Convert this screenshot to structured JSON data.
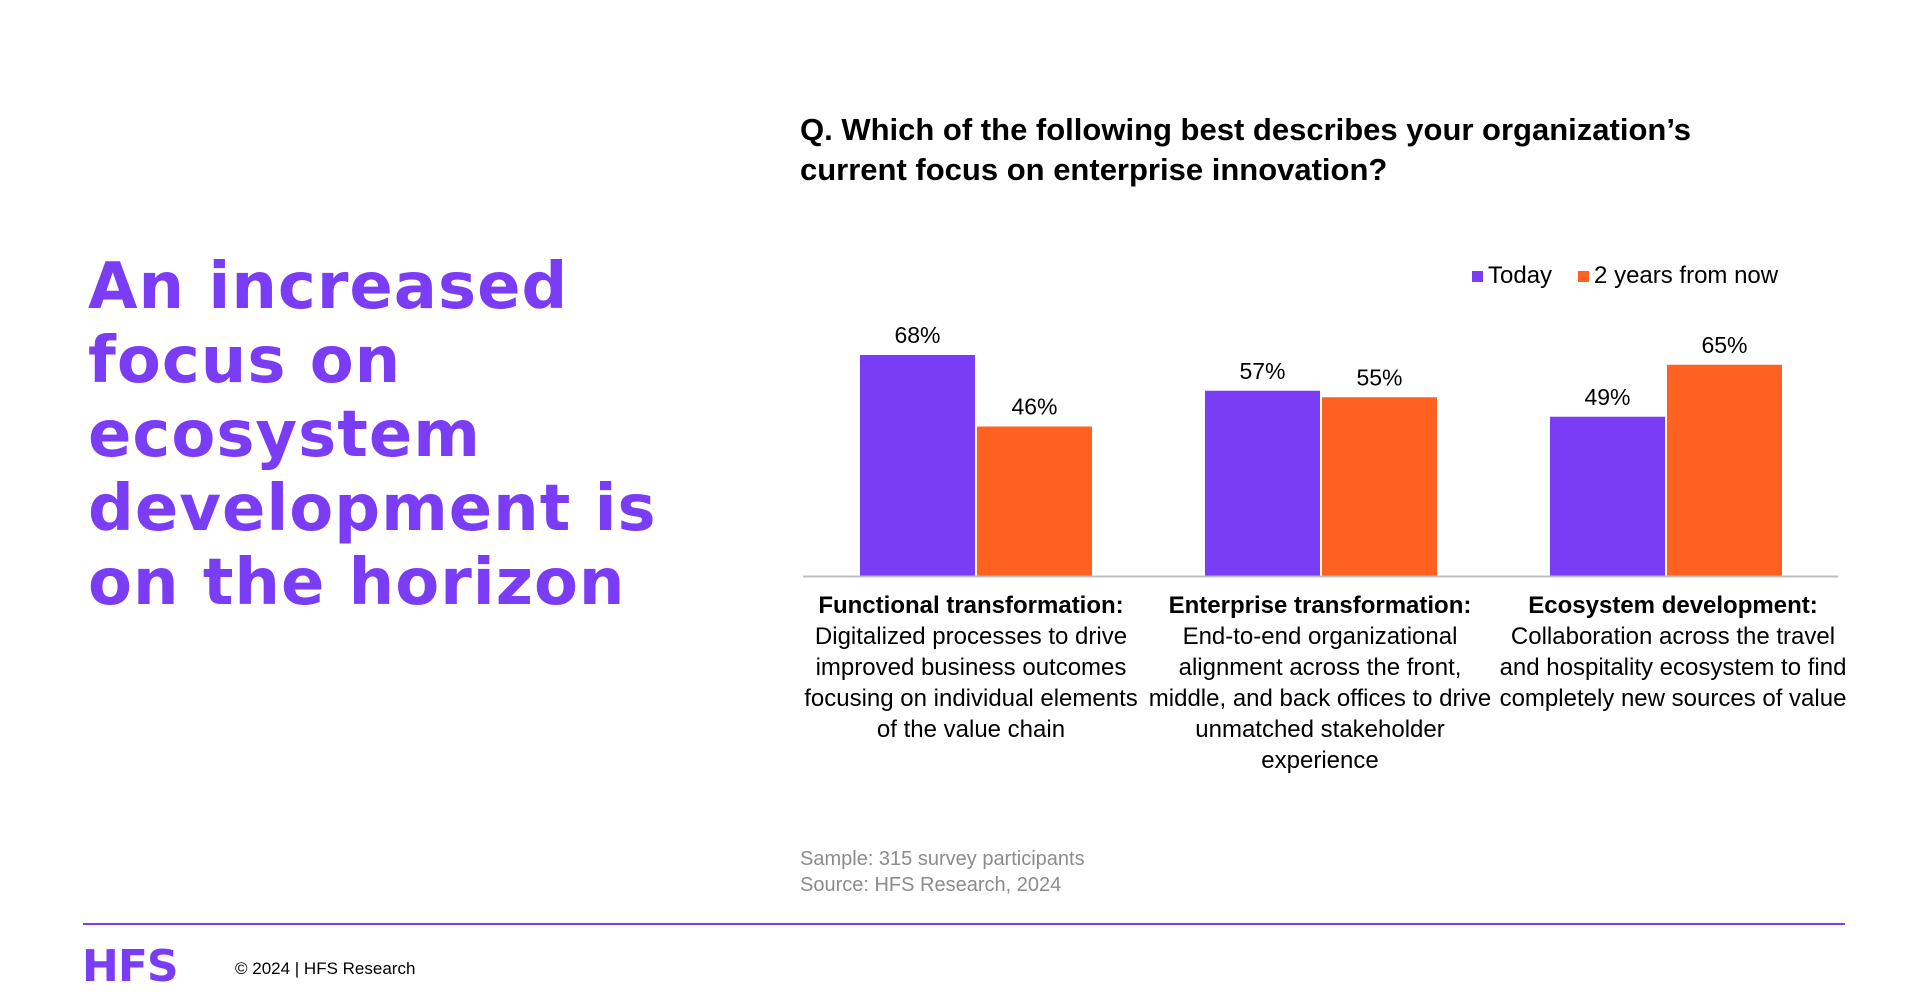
{
  "headline": "An increased focus on ecosystem development is on the horizon",
  "question": "Q. Which of the following best describes your organization’s current focus on enterprise innovation?",
  "colors": {
    "accent": "#7A3CF5",
    "today": "#7A3CF5",
    "two_years": "#FF6120",
    "axis": "#BFBFBF",
    "notes": "#8C8C8C"
  },
  "chart_data": {
    "type": "bar",
    "title": "Q. Which of the following best describes your organization’s current focus on enterprise innovation?",
    "categories": [
      {
        "title": "Functional transformation:",
        "description": "Digitalized processes to drive improved business outcomes focusing on individual elements of the value chain"
      },
      {
        "title": "Enterprise transformation:",
        "description": "End-to-end organizational alignment across the front, middle, and back offices to drive unmatched stakeholder experience"
      },
      {
        "title": "Ecosystem development:",
        "description": "Collaboration across the travel and hospitality ecosystem to find completely new sources of value"
      }
    ],
    "series": [
      {
        "name": "Today",
        "color": "#7A3CF5",
        "values": [
          68,
          57,
          49
        ],
        "labels": [
          "68%",
          "57%",
          "49%"
        ]
      },
      {
        "name": "2 years from now",
        "color": "#FF6120",
        "values": [
          46,
          55,
          65
        ],
        "labels": [
          "46%",
          "55%",
          "65%"
        ]
      }
    ],
    "unit": "%",
    "ylim": [
      0,
      100
    ],
    "grid": false,
    "legend_position": "top-right"
  },
  "notes": {
    "sample": "Sample: 315 survey participants",
    "source": "Source: HFS Research, 2024"
  },
  "footer": {
    "logo": "HFS",
    "copyright": "© 2024 | HFS Research"
  }
}
